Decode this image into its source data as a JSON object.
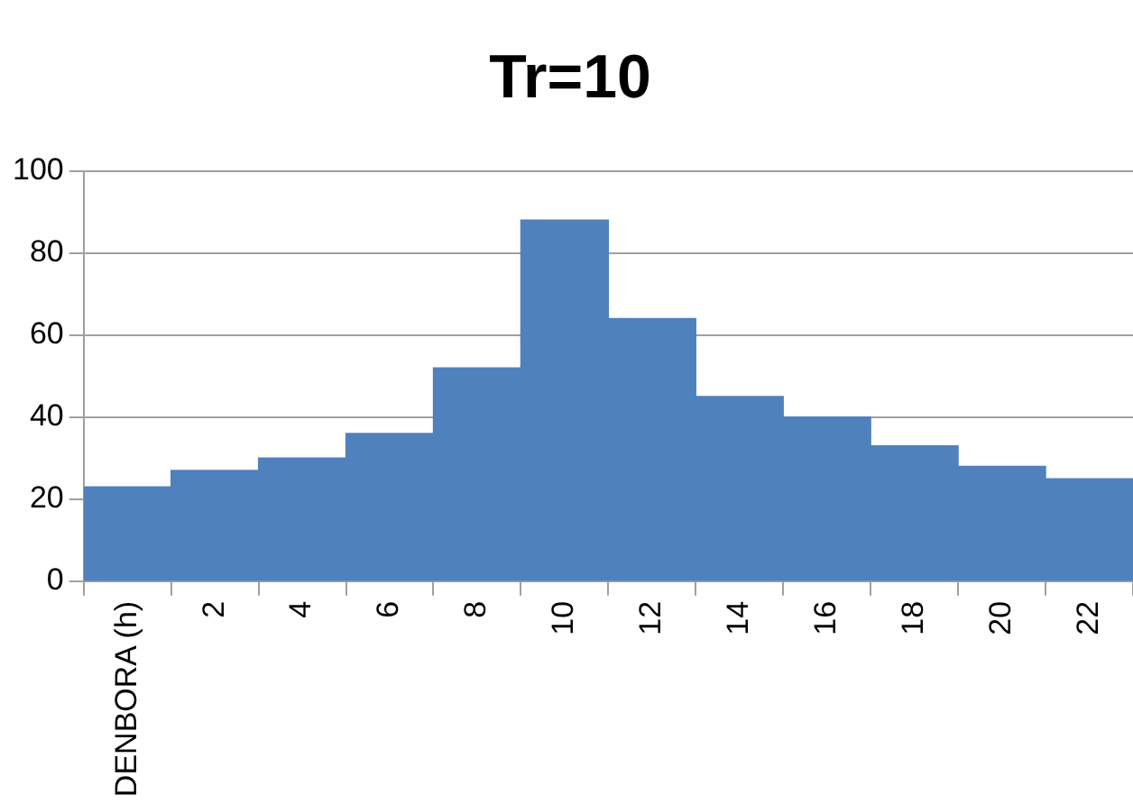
{
  "chart_data": {
    "type": "bar",
    "title": "Tr=10",
    "categories": [
      "DENBORA (h)",
      "2",
      "4",
      "6",
      "8",
      "10",
      "12",
      "14",
      "16",
      "18",
      "20",
      "22"
    ],
    "values": [
      23,
      27,
      30,
      36,
      52,
      88,
      64,
      45,
      40,
      33,
      28,
      25
    ],
    "color": "#4f81bd",
    "ylim": [
      0,
      100
    ],
    "yticks": [
      0,
      20,
      40,
      60,
      80,
      100
    ],
    "grid": "y",
    "legend": false
  }
}
